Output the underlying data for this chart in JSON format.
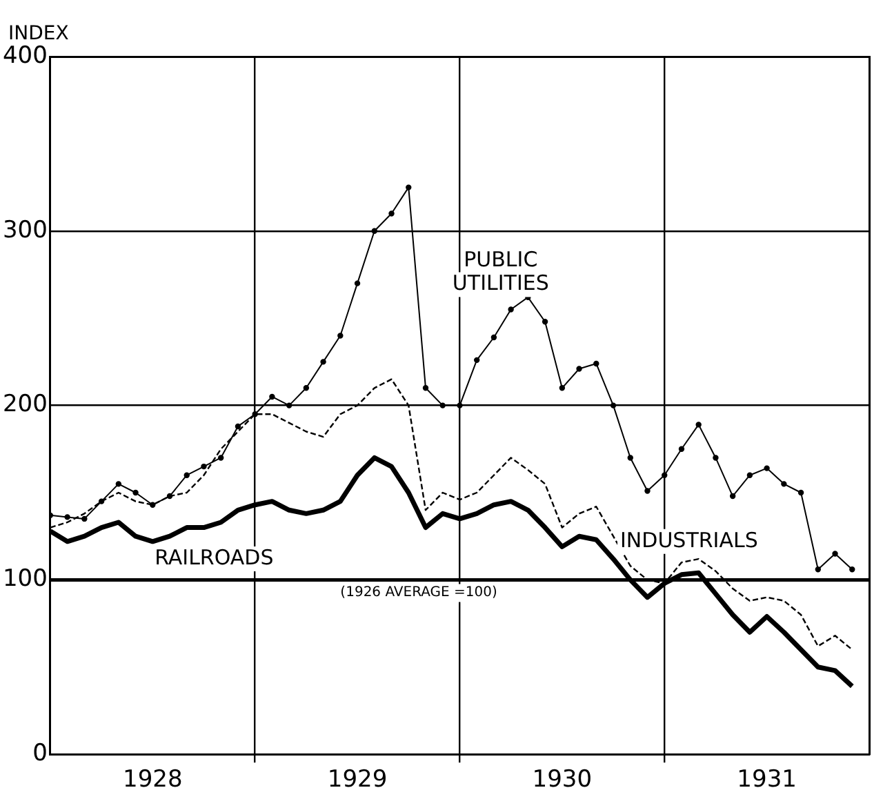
{
  "chart_data": {
    "type": "line",
    "ylabel": "INDEX",
    "x": [
      "1928-01",
      "1928-02",
      "1928-03",
      "1928-04",
      "1928-05",
      "1928-06",
      "1928-07",
      "1928-08",
      "1928-09",
      "1928-10",
      "1928-11",
      "1928-12",
      "1929-01",
      "1929-02",
      "1929-03",
      "1929-04",
      "1929-05",
      "1929-06",
      "1929-07",
      "1929-08",
      "1929-09",
      "1929-10",
      "1929-11",
      "1929-12",
      "1930-01",
      "1930-02",
      "1930-03",
      "1930-04",
      "1930-05",
      "1930-06",
      "1930-07",
      "1930-08",
      "1930-09",
      "1930-10",
      "1930-11",
      "1930-12",
      "1931-01",
      "1931-02",
      "1931-03",
      "1931-04",
      "1931-05",
      "1931-06",
      "1931-07",
      "1931-08",
      "1931-09",
      "1931-10",
      "1931-11",
      "1931-12"
    ],
    "series": [
      {
        "name": "PUBLIC UTILITIES",
        "color": "#000000",
        "marker": "circle",
        "line_style": "solid",
        "values": [
          137,
          136,
          135,
          145,
          155,
          150,
          143,
          148,
          160,
          165,
          170,
          188,
          195,
          205,
          200,
          210,
          225,
          240,
          270,
          300,
          310,
          325,
          210,
          200,
          200,
          226,
          239,
          255,
          262,
          248,
          210,
          221,
          224,
          200,
          170,
          151,
          160,
          175,
          189,
          170,
          148,
          160,
          164,
          155,
          150,
          106,
          115,
          106
        ]
      },
      {
        "name": "INDUSTRIALS",
        "color": "#000000",
        "marker": "none",
        "line_style": "dashed",
        "values": [
          130,
          133,
          138,
          145,
          150,
          145,
          143,
          148,
          150,
          160,
          175,
          185,
          195,
          195,
          190,
          185,
          182,
          195,
          200,
          210,
          215,
          200,
          140,
          150,
          146,
          150,
          160,
          170,
          163,
          155,
          130,
          138,
          142,
          125,
          108,
          100,
          98,
          110,
          112,
          105,
          95,
          88,
          90,
          88,
          80,
          62,
          68,
          60
        ]
      },
      {
        "name": "RAILROADS",
        "color": "#000000",
        "marker": "none",
        "line_style": "solid",
        "values": [
          128,
          122,
          125,
          130,
          133,
          125,
          122,
          125,
          130,
          130,
          133,
          140,
          143,
          145,
          140,
          138,
          140,
          145,
          160,
          170,
          165,
          150,
          130,
          138,
          135,
          138,
          143,
          145,
          140,
          130,
          119,
          125,
          123,
          112,
          100,
          90,
          98,
          103,
          104,
          92,
          80,
          70,
          79,
          70,
          60,
          50,
          48,
          39
        ]
      }
    ],
    "xlim": [
      "1928-01",
      "1932-01"
    ],
    "xticks": [
      {
        "value": "1928-07",
        "label": "1928"
      },
      {
        "value": "1929-01",
        "label": null
      },
      {
        "value": "1929-07",
        "label": "1929"
      },
      {
        "value": "1930-01",
        "label": null
      },
      {
        "value": "1930-07",
        "label": "1930"
      },
      {
        "value": "1931-01",
        "label": null
      },
      {
        "value": "1931-07",
        "label": "1931"
      }
    ],
    "ylim": [
      0,
      400
    ],
    "yticks": [
      0,
      100,
      200,
      300,
      400
    ],
    "ref_lines": [
      {
        "axis": "y",
        "value": 100,
        "label": "(1926 AVERAGE =100)"
      }
    ],
    "grid": true,
    "legend": false
  }
}
